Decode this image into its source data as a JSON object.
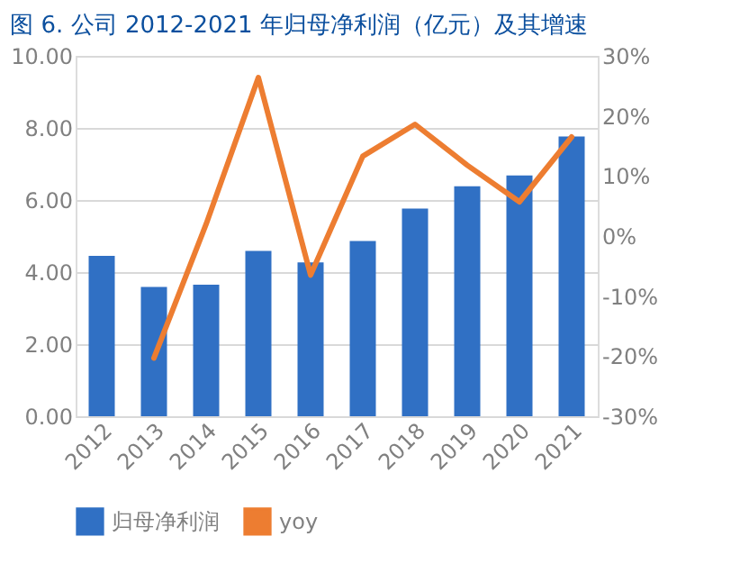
{
  "chart_data": {
    "type": "bar",
    "title": "图 6. 公司 2012-2021 年归母净利润（亿元）及其增速",
    "categories": [
      "2012",
      "2013",
      "2014",
      "2015",
      "2016",
      "2017",
      "2018",
      "2019",
      "2020",
      "2021"
    ],
    "series": [
      {
        "name": "归母净利润",
        "color": "#3070c4",
        "values": [
          4.45,
          3.59,
          3.65,
          4.59,
          4.27,
          4.86,
          5.76,
          6.38,
          6.68,
          7.76
        ]
      },
      {
        "name": "yoy",
        "type": "line",
        "axis": "y2",
        "color": "#ed7d31",
        "values": [
          null,
          -20.3,
          2,
          26.4,
          -6.5,
          13.3,
          18.6,
          11.8,
          5.7,
          16.5
        ]
      }
    ],
    "ylim": [
      0,
      10
    ],
    "yticks": [
      {
        "value": 0,
        "label": "0.00"
      },
      {
        "value": 2,
        "label": "2.00"
      },
      {
        "value": 4,
        "label": "4.00"
      },
      {
        "value": 6,
        "label": "6.00"
      },
      {
        "value": 8,
        "label": "8.00"
      },
      {
        "value": 10,
        "label": "10.00"
      }
    ],
    "y2lim": [
      -30,
      30
    ],
    "y2ticks": [
      {
        "value": -30,
        "label": "-30%"
      },
      {
        "value": -20,
        "label": "-20%"
      },
      {
        "value": -10,
        "label": "-10%"
      },
      {
        "value": 0,
        "label": "0%"
      },
      {
        "value": 10,
        "label": "10%"
      },
      {
        "value": 20,
        "label": "20%"
      },
      {
        "value": 30,
        "label": "30%"
      }
    ],
    "grid": "y",
    "legend": "bottom",
    "marker": "none"
  }
}
